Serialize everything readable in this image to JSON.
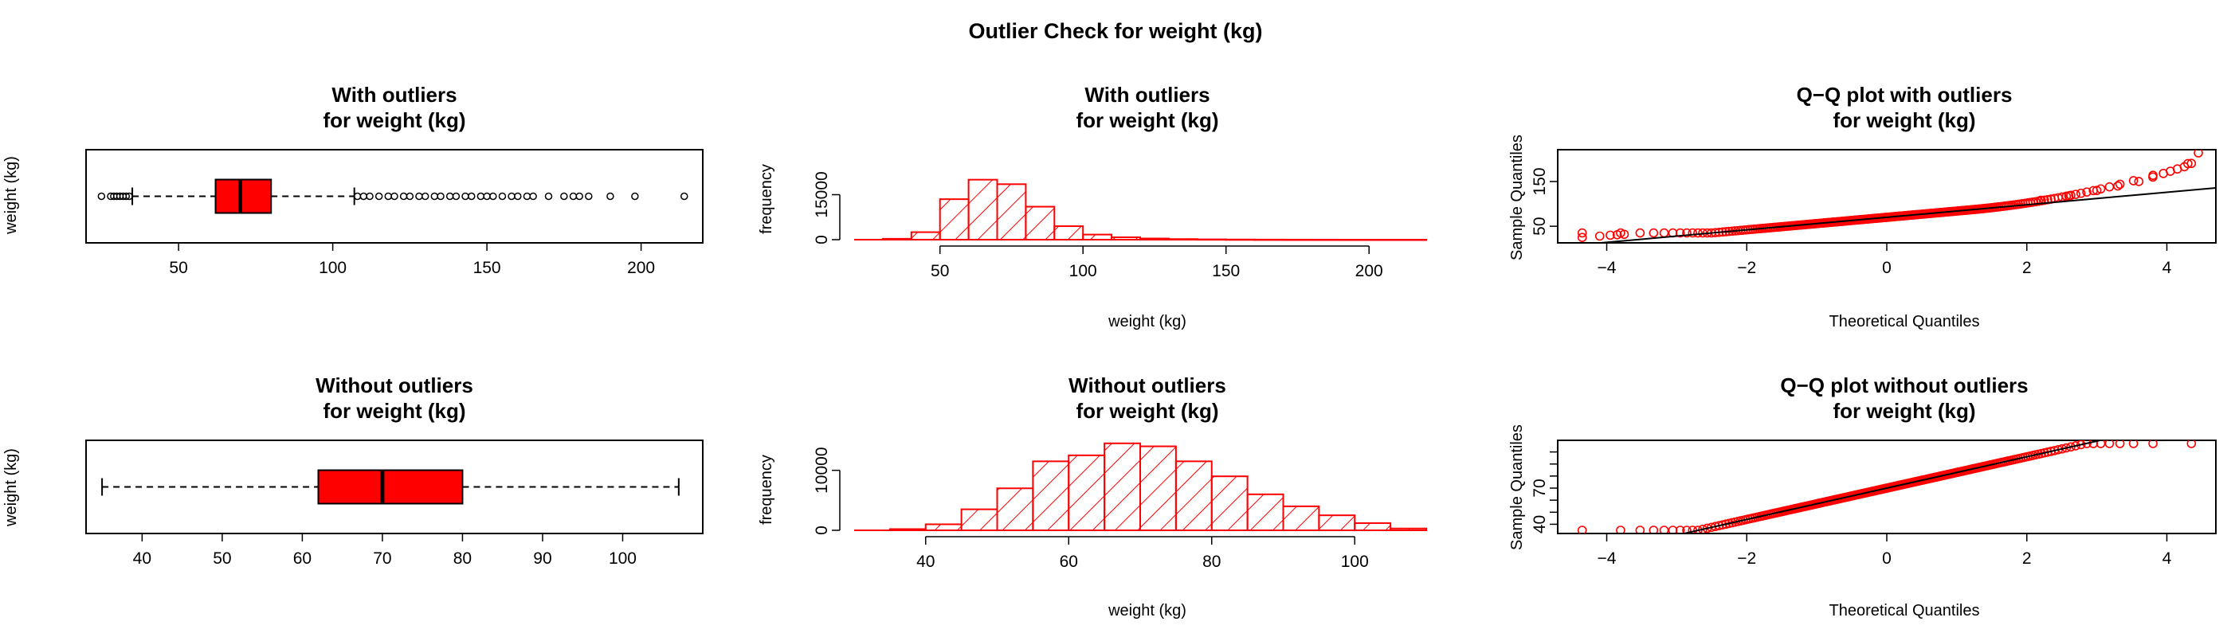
{
  "main_title": "Outlier Check for  weight (kg)",
  "colors": {
    "accent": "#ff0000",
    "stroke": "#000000",
    "background": "#ffffff"
  },
  "panels": [
    {
      "id": "box-with",
      "title_line1": "With outliers",
      "title_line2": "for weight (kg)",
      "ylabel": "weight (kg)",
      "xlabel": ""
    },
    {
      "id": "hist-with",
      "title_line1": "With outliers",
      "title_line2": "for weight (kg)",
      "ylabel": "frequency",
      "xlabel": "weight (kg)"
    },
    {
      "id": "qq-with",
      "title_line1": "Q−Q plot with outliers",
      "title_line2": "for weight (kg)",
      "ylabel": "Sample Quantiles",
      "xlabel": "Theoretical Quantiles"
    },
    {
      "id": "box-without",
      "title_line1": "Without outliers",
      "title_line2": "for weight (kg)",
      "ylabel": "weight (kg)",
      "xlabel": ""
    },
    {
      "id": "hist-without",
      "title_line1": "Without outliers",
      "title_line2": "for weight (kg)",
      "ylabel": "frequency",
      "xlabel": "weight (kg)"
    },
    {
      "id": "qq-without",
      "title_line1": "Q−Q plot without outliers",
      "title_line2": "for weight (kg)",
      "ylabel": "Sample Quantiles",
      "xlabel": "Theoretical Quantiles"
    }
  ],
  "chart_data": [
    {
      "type": "boxplot",
      "orientation": "horizontal",
      "xlim": [
        20,
        220
      ],
      "xticks": [
        50,
        100,
        150,
        200
      ],
      "stats": {
        "whisker_low": 35,
        "q1": 62,
        "median": 70,
        "q3": 80,
        "whisker_high": 107
      },
      "outliers": [
        25,
        28,
        29,
        30,
        31,
        32,
        33,
        34,
        108,
        110,
        112,
        115,
        118,
        120,
        123,
        125,
        128,
        130,
        133,
        135,
        138,
        140,
        143,
        145,
        148,
        150,
        152,
        155,
        158,
        160,
        163,
        165,
        170,
        175,
        178,
        180,
        183,
        190,
        198,
        214
      ]
    },
    {
      "type": "histogram",
      "xlim": [
        20,
        220
      ],
      "ylim": [
        0,
        30000
      ],
      "yticks": [
        0,
        15000
      ],
      "xticks": [
        50,
        100,
        150,
        200
      ],
      "bin_edges": [
        30,
        40,
        50,
        60,
        70,
        80,
        90,
        100,
        110,
        120,
        130,
        140,
        150,
        160,
        170,
        180,
        190,
        200,
        210,
        220
      ],
      "counts": [
        300,
        2500,
        13500,
        20000,
        18500,
        11000,
        4500,
        1700,
        800,
        400,
        200,
        100,
        60,
        30,
        15,
        8,
        4,
        2,
        1
      ]
    },
    {
      "type": "qqplot",
      "xlim": [
        -4.7,
        4.7
      ],
      "ylim": [
        20,
        214
      ],
      "xticks": [
        -4,
        -2,
        0,
        2,
        4
      ],
      "yticks": [
        50,
        150
      ],
      "reference_line": {
        "intercept": 70,
        "slope": 14
      },
      "tail_points": [
        [
          2.2,
          108
        ],
        [
          2.6,
          118
        ],
        [
          3.0,
          130
        ],
        [
          3.3,
          140
        ],
        [
          3.6,
          150
        ],
        [
          3.8,
          160
        ],
        [
          3.95,
          168
        ],
        [
          4.05,
          173
        ],
        [
          4.15,
          178
        ],
        [
          4.25,
          183
        ],
        [
          4.3,
          190
        ],
        [
          4.45,
          214
        ]
      ],
      "low_points": [
        [
          -4.35,
          25
        ],
        [
          -4.1,
          28
        ],
        [
          -3.95,
          30
        ],
        [
          -3.85,
          31
        ],
        [
          -3.75,
          32
        ]
      ]
    },
    {
      "type": "boxplot",
      "orientation": "horizontal",
      "xlim": [
        33,
        110
      ],
      "xticks": [
        40,
        50,
        60,
        70,
        80,
        90,
        100
      ],
      "stats": {
        "whisker_low": 35,
        "q1": 62,
        "median": 70,
        "q3": 80,
        "whisker_high": 107
      },
      "outliers": []
    },
    {
      "type": "histogram",
      "xlim": [
        30,
        110
      ],
      "ylim": [
        0,
        15000
      ],
      "yticks": [
        0,
        10000
      ],
      "xticks": [
        40,
        60,
        80,
        100
      ],
      "bin_edges": [
        35,
        40,
        45,
        50,
        55,
        60,
        65,
        70,
        75,
        80,
        85,
        90,
        95,
        100,
        105,
        110
      ],
      "counts": [
        200,
        1000,
        3500,
        7000,
        11500,
        12500,
        14500,
        14000,
        11500,
        9000,
        6000,
        4000,
        2500,
        1200,
        300
      ]
    },
    {
      "type": "qqplot",
      "xlim": [
        -4.7,
        4.7
      ],
      "ylim": [
        35,
        107
      ],
      "xticks": [
        -4,
        -2,
        0,
        2,
        4
      ],
      "yticks": [
        40,
        70
      ],
      "reference_line": {
        "intercept": 70,
        "slope": 13
      },
      "plateau_low": 35,
      "plateau_high": 107
    }
  ]
}
